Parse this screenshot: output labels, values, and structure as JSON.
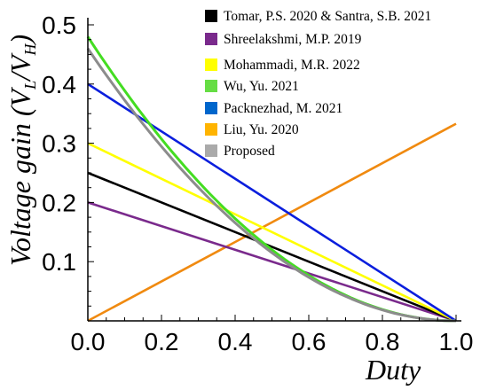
{
  "chart_data": {
    "type": "line",
    "xlabel": "Duty",
    "ylabel_main": "Voltage gain (",
    "ylabel_vl": "V",
    "ylabel_vl_sub": "L",
    "ylabel_slash": "/",
    "ylabel_vh": "V",
    "ylabel_vh_sub": "H",
    "ylabel_close": ")",
    "xlim": [
      0,
      1
    ],
    "ylim": [
      0,
      0.5
    ],
    "x_ticks": [
      "0.0",
      "0.2",
      "0.4",
      "0.6",
      "0.8",
      "1.0"
    ],
    "y_ticks": [
      "0.1",
      "0.2",
      "0.3",
      "0.4",
      "0.5"
    ],
    "grid": false,
    "legend_position": "top-right",
    "series": [
      {
        "name": "Tomar, P.S. 2020 & Santra, S.B. 2021",
        "color": "#000000",
        "kind": "linear",
        "x": [
          0,
          1
        ],
        "y": [
          0.25,
          0
        ]
      },
      {
        "name": "Shreelakshmi, M.P. 2019",
        "color": "#7a2a8c",
        "kind": "linear",
        "x": [
          0,
          1
        ],
        "y": [
          0.2,
          0
        ]
      },
      {
        "name": "Mohammadi, M.R. 2022",
        "color": "#ffff00",
        "kind": "linear",
        "x": [
          0,
          1
        ],
        "y": [
          0.3,
          0
        ]
      },
      {
        "name": "Wu, Yu. 2021",
        "color": "#44dd22",
        "kind": "quadratic",
        "x": [
          0,
          0.2,
          0.4,
          0.6,
          0.8,
          1
        ],
        "y": [
          0.48,
          0.307,
          0.173,
          0.077,
          0.019,
          0
        ]
      },
      {
        "name": "Packnezhad, M. 2021",
        "color": "#0a1edd",
        "kind": "linear",
        "x": [
          0,
          1
        ],
        "y": [
          0.4,
          0
        ]
      },
      {
        "name": "Liu, Yu. 2020",
        "color": "#f08a10",
        "kind": "linear",
        "x": [
          0,
          1
        ],
        "y": [
          0,
          0.333
        ]
      },
      {
        "name": "Proposed",
        "color": "#8c8c8c",
        "kind": "quadratic",
        "x": [
          0,
          0.2,
          0.4,
          0.6,
          0.8,
          1
        ],
        "y": [
          0.46,
          0.294,
          0.166,
          0.074,
          0.018,
          0
        ]
      }
    ],
    "legend_swatch_colors": [
      "#000000",
      "#7a2a8c",
      "#ffff00",
      "#66dd44",
      "#0066cc",
      "#ffb400",
      "#aaaaaa"
    ]
  }
}
